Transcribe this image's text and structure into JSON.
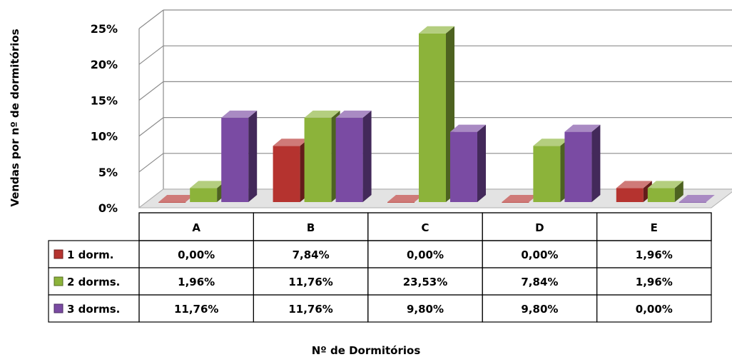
{
  "chart_data": {
    "type": "bar",
    "title": "",
    "xlabel": "Nº de Dormitórios",
    "ylabel": "Vendas por nº de dormitórios",
    "categories": [
      "A",
      "B",
      "C",
      "D",
      "E"
    ],
    "ylim": [
      0,
      25
    ],
    "yticks": [
      "0%",
      "5%",
      "10%",
      "15%",
      "20%",
      "25%"
    ],
    "ytick_values": [
      0,
      5,
      10,
      15,
      20,
      25
    ],
    "grid": true,
    "legend": "table-rows",
    "series": [
      {
        "name": "1 dorm.",
        "color": "#b5332f",
        "values": [
          0.0,
          7.84,
          0.0,
          0.0,
          1.96
        ],
        "labels": [
          "0,00%",
          "7,84%",
          "0,00%",
          "0,00%",
          "1,96%"
        ]
      },
      {
        "name": "2 dorms.",
        "color": "#8cb33a",
        "values": [
          1.96,
          11.76,
          23.53,
          7.84,
          1.96
        ],
        "labels": [
          "1,96%",
          "11,76%",
          "23,53%",
          "7,84%",
          "1,96%"
        ]
      },
      {
        "name": "3 dorms.",
        "color": "#7a4ba3",
        "values": [
          11.76,
          11.76,
          9.8,
          9.8,
          0.0
        ],
        "labels": [
          "11,76%",
          "11,76%",
          "9,80%",
          "9,80%",
          "0,00%"
        ]
      }
    ]
  }
}
